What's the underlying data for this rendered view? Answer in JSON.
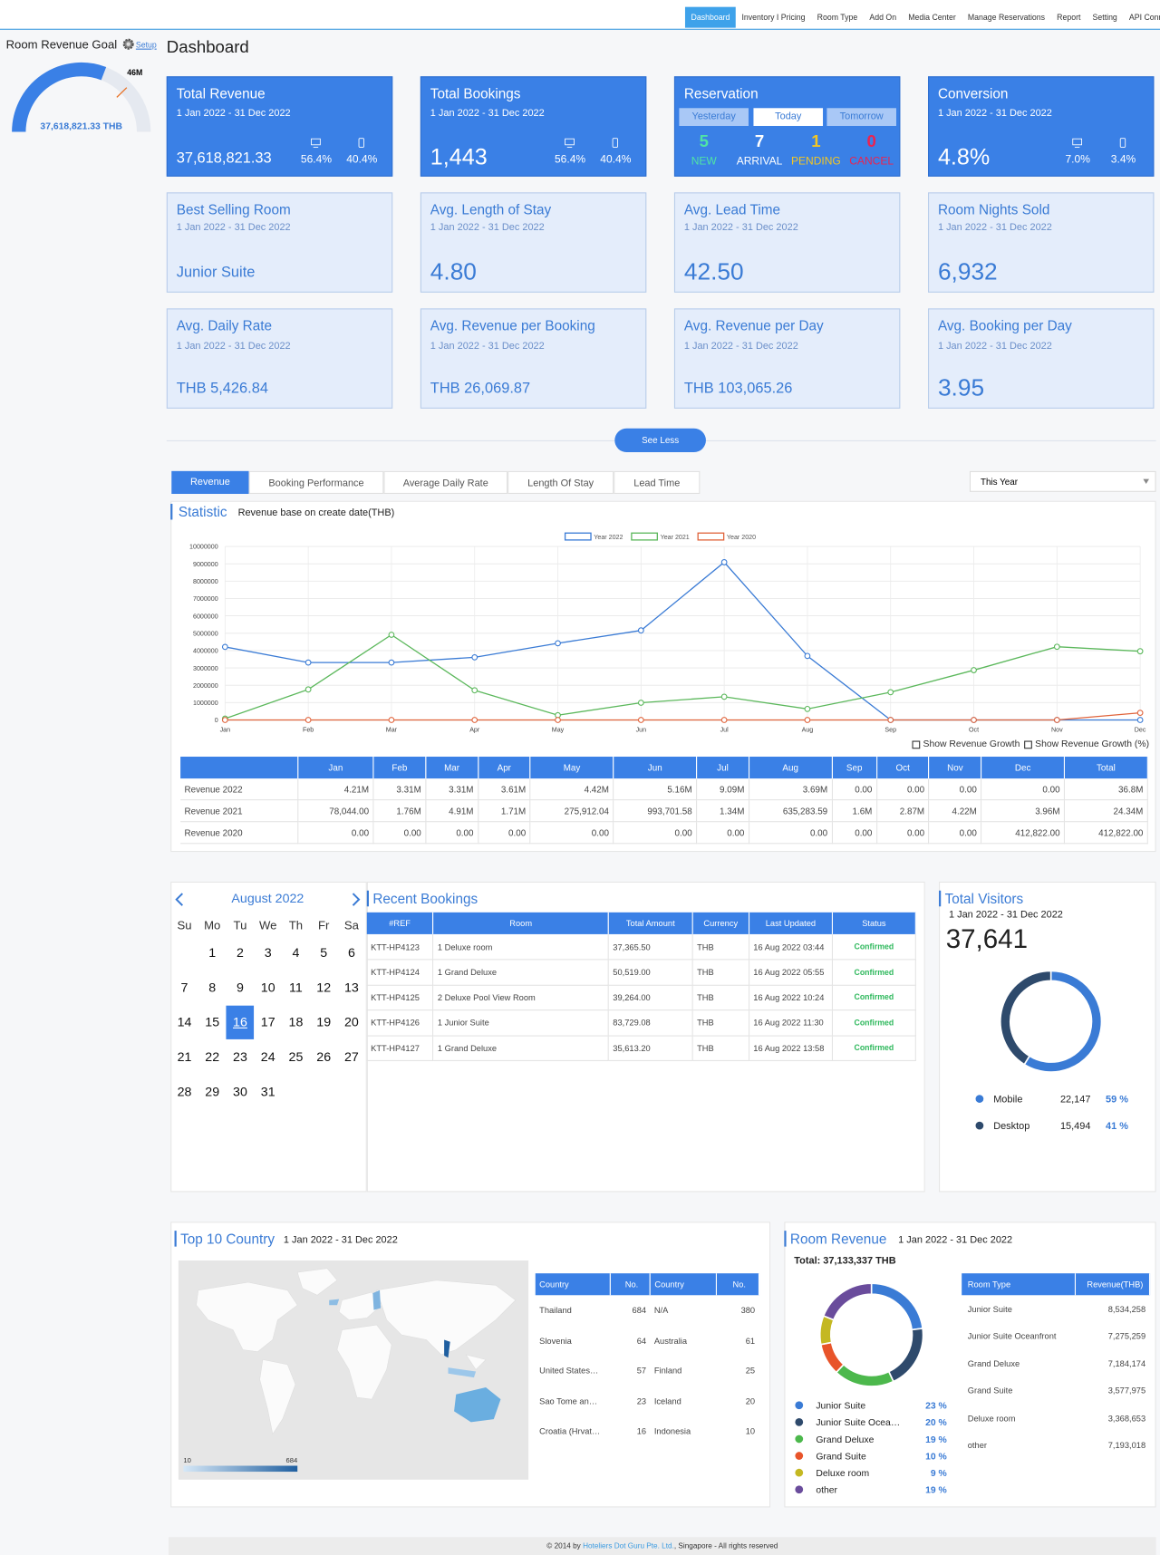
{
  "nav": {
    "items": [
      "Dashboard",
      "Inventory I Pricing",
      "Room Type",
      "Add On",
      "Media Center",
      "Manage Reservations",
      "Report",
      "Setting",
      "API Connect"
    ],
    "active": 0
  },
  "goal": {
    "title": "Room Revenue Goal",
    "setup": "Setup",
    "value": 37618821.33,
    "value_label": "37,618,821.33 THB",
    "target": 46000000,
    "target_label": "46M",
    "lim": [
      0,
      61000000
    ]
  },
  "page_title": "Dashboard",
  "summary_cards": [
    {
      "title": "Total Revenue",
      "date": "1 Jan 2022 - 31 Dec 2022",
      "value": "37,618,821.33",
      "desktop": "56.4%",
      "mobile": "40.4%"
    },
    {
      "title": "Total Bookings",
      "date": "1 Jan 2022 - 31 Dec 2022",
      "value": "1,443",
      "desktop": "56.4%",
      "mobile": "40.4%"
    },
    {
      "title": "Conversion",
      "date": "1 Jan 2022 - 31 Dec 2022",
      "value": "4.8%",
      "desktop": "7.0%",
      "mobile": "3.4%"
    }
  ],
  "reservation": {
    "title": "Reservation",
    "tabs": [
      "Yesterday",
      "Today",
      "Tomorrow"
    ],
    "active_tab": 1,
    "counts": [
      {
        "value": "5",
        "label": "NEW",
        "color": "#4fe3a6"
      },
      {
        "value": "7",
        "label": "ARRIVAL",
        "color": "#ffffff"
      },
      {
        "value": "1",
        "label": "PENDING",
        "color": "#f3c623"
      },
      {
        "value": "0",
        "label": "CANCEL",
        "color": "#ec2350"
      }
    ]
  },
  "stat_cards": [
    {
      "title": "Best Selling Room",
      "date": "1 Jan 2022 - 31 Dec 2022",
      "value": "Junior Suite"
    },
    {
      "title": "Avg. Length of Stay",
      "date": "1 Jan 2022 - 31 Dec 2022",
      "value": "4.80"
    },
    {
      "title": "Avg. Lead Time",
      "date": "1 Jan 2022 - 31 Dec 2022",
      "value": "42.50"
    },
    {
      "title": "Room Nights Sold",
      "date": "1 Jan 2022 - 31 Dec 2022",
      "value": "6,932"
    },
    {
      "title": "Avg. Daily Rate",
      "date": "1 Jan 2022 - 31 Dec 2022",
      "value": "THB 5,426.84"
    },
    {
      "title": "Avg. Revenue per Booking",
      "date": "1 Jan 2022 - 31 Dec 2022",
      "value": "THB 26,069.87"
    },
    {
      "title": "Avg. Revenue per Day",
      "date": "1 Jan 2022 - 31 Dec 2022",
      "value": "THB 103,065.26"
    },
    {
      "title": "Avg. Booking per Day",
      "date": "1 Jan 2022 - 31 Dec 2022",
      "value": "3.95"
    }
  ],
  "toggle_button": "See Less",
  "tabs": {
    "items": [
      "Revenue",
      "Booking Performance",
      "Average Daily Rate",
      "Length Of Stay",
      "Lead Time"
    ],
    "active": 0
  },
  "period_select": "This Year",
  "chart_data": [
    {
      "type": "line",
      "title": "Statistic",
      "subtitle": "Revenue base on create date(THB)",
      "categories": [
        "Jan",
        "Feb",
        "Mar",
        "Apr",
        "May",
        "Jun",
        "Jul",
        "Aug",
        "Sep",
        "Oct",
        "Nov",
        "Dec"
      ],
      "series": [
        {
          "name": "Year 2022",
          "color": "#3a7bd5",
          "values": [
            4210000,
            3310000,
            3310000,
            3610000,
            4420000,
            5160000,
            9090000,
            3690000,
            0,
            0,
            0,
            0
          ]
        },
        {
          "name": "Year 2021",
          "color": "#5cb85c",
          "values": [
            78044,
            1760000,
            4910000,
            1710000,
            275912.04,
            993701.58,
            1340000,
            635283.59,
            1600000,
            2870000,
            4220000,
            3960000
          ]
        },
        {
          "name": "Year 2020",
          "color": "#e0643c",
          "values": [
            0,
            0,
            0,
            0,
            0,
            0,
            0,
            0,
            0,
            0,
            0,
            412822
          ]
        }
      ],
      "ylim": [
        0,
        10000000
      ],
      "yticks": [
        0,
        1000000,
        2000000,
        3000000,
        4000000,
        5000000,
        6000000,
        7000000,
        8000000,
        9000000,
        10000000
      ],
      "grid": true,
      "legend": "top"
    },
    {
      "type": "pie",
      "title": "Total Visitors",
      "subtitle": "1 Jan 2022 - 31 Dec 2022",
      "total": "37,641",
      "categories": [
        "Mobile",
        "Desktop"
      ],
      "values": [
        22147,
        15494
      ],
      "value_labels": [
        "22,147",
        "15,494"
      ],
      "percents": [
        59,
        41
      ],
      "percent_labels": [
        "59 %",
        "41 %"
      ],
      "colors": [
        "#3a7bd5",
        "#2e4a6c"
      ]
    },
    {
      "type": "pie",
      "title": "Room Revenue",
      "subtitle": "1 Jan 2022 - 31 Dec 2022",
      "total": "Total: 37,133,337 THB",
      "categories": [
        "Junior Suite",
        "Junior Suite Ocea…",
        "Grand Deluxe",
        "Grand Suite",
        "Deluxe room",
        "other"
      ],
      "values": [
        23,
        20,
        19,
        10,
        9,
        19
      ],
      "value_labels": [
        "23 %",
        "20 %",
        "19 %",
        "10 %",
        "9 %",
        "19 %"
      ],
      "colors": [
        "#3a7bd5",
        "#2e4a6c",
        "#4cb84c",
        "#e8542a",
        "#c4b822",
        "#6a4c9c"
      ]
    }
  ],
  "growth_options": [
    "Show Revenue Growth",
    "Show Revenue Growth (%)"
  ],
  "revenue_table": {
    "columns": [
      "Jan",
      "Feb",
      "Mar",
      "Apr",
      "May",
      "Jun",
      "Jul",
      "Aug",
      "Sep",
      "Oct",
      "Nov",
      "Dec",
      "Total"
    ],
    "rows": [
      [
        "Revenue 2022",
        "4.21M",
        "3.31M",
        "3.31M",
        "3.61M",
        "4.42M",
        "5.16M",
        "9.09M",
        "3.69M",
        "0.00",
        "0.00",
        "0.00",
        "0.00",
        "36.8M"
      ],
      [
        "Revenue 2021",
        "78,044.00",
        "1.76M",
        "4.91M",
        "1.71M",
        "275,912.04",
        "993,701.58",
        "1.34M",
        "635,283.59",
        "1.6M",
        "2.87M",
        "4.22M",
        "3.96M",
        "24.34M"
      ],
      [
        "Revenue 2020",
        "0.00",
        "0.00",
        "0.00",
        "0.00",
        "0.00",
        "0.00",
        "0.00",
        "0.00",
        "0.00",
        "0.00",
        "0.00",
        "412,822.00",
        "412,822.00"
      ]
    ]
  },
  "calendar": {
    "month": "August 2022",
    "weekdays": [
      "Su",
      "Mo",
      "Tu",
      "We",
      "Th",
      "Fr",
      "Sa"
    ],
    "weeks": [
      [
        null,
        1,
        2,
        3,
        4,
        5,
        6
      ],
      [
        7,
        8,
        9,
        10,
        11,
        12,
        13
      ],
      [
        14,
        15,
        16,
        17,
        18,
        19,
        20
      ],
      [
        21,
        22,
        23,
        24,
        25,
        26,
        27
      ],
      [
        28,
        29,
        30,
        31,
        null,
        null,
        null
      ]
    ],
    "selected": 16
  },
  "recent_bookings": {
    "title": "Recent Bookings",
    "columns": [
      "#REF",
      "Room",
      "Total Amount",
      "Currency",
      "Last Updated",
      "Status"
    ],
    "rows": [
      [
        "KTT-HP4123",
        "1 Deluxe room",
        "37,365.50",
        "THB",
        "16 Aug 2022 03:44",
        "Confirmed"
      ],
      [
        "KTT-HP4124",
        "1 Grand Deluxe",
        "50,519.00",
        "THB",
        "16 Aug 2022 05:55",
        "Confirmed"
      ],
      [
        "KTT-HP4125",
        "2 Deluxe Pool View Room",
        "39,264.00",
        "THB",
        "16 Aug 2022 10:24",
        "Confirmed"
      ],
      [
        "KTT-HP4126",
        "1 Junior Suite",
        "83,729.08",
        "THB",
        "16 Aug 2022 11:30",
        "Confirmed"
      ],
      [
        "KTT-HP4127",
        "1 Grand Deluxe",
        "35,613.20",
        "THB",
        "16 Aug 2022 13:58",
        "Confirmed"
      ]
    ]
  },
  "countries": {
    "title": "Top 10 Country",
    "date": "1 Jan 2022 - 31 Dec 2022",
    "columns": [
      "Country",
      "No.",
      "Country",
      "No."
    ],
    "rows": [
      [
        "Thailand",
        "684",
        "N/A",
        "380"
      ],
      [
        "Slovenia",
        "64",
        "Australia",
        "61"
      ],
      [
        "United States…",
        "57",
        "Finland",
        "25"
      ],
      [
        "Sao Tome an…",
        "23",
        "Iceland",
        "20"
      ],
      [
        "Croatia (Hrvat…",
        "16",
        "Indonesia",
        "10"
      ]
    ],
    "scale": [
      "10",
      "684"
    ]
  },
  "room_revenue_table": {
    "columns": [
      "Room Type",
      "Revenue(THB)"
    ],
    "rows": [
      [
        "Junior Suite",
        "8,534,258"
      ],
      [
        "Junior Suite Oceanfront",
        "7,275,259"
      ],
      [
        "Grand Deluxe",
        "7,184,174"
      ],
      [
        "Grand Suite",
        "3,577,975"
      ],
      [
        "Deluxe room",
        "3,368,653"
      ],
      [
        "other",
        "7,193,018"
      ]
    ]
  },
  "footer": {
    "prefix": "© 2014 by",
    "company": "Hoteliers Dot Guru Pte. Ltd.",
    "suffix": ", Singapore - All rights reserved"
  }
}
